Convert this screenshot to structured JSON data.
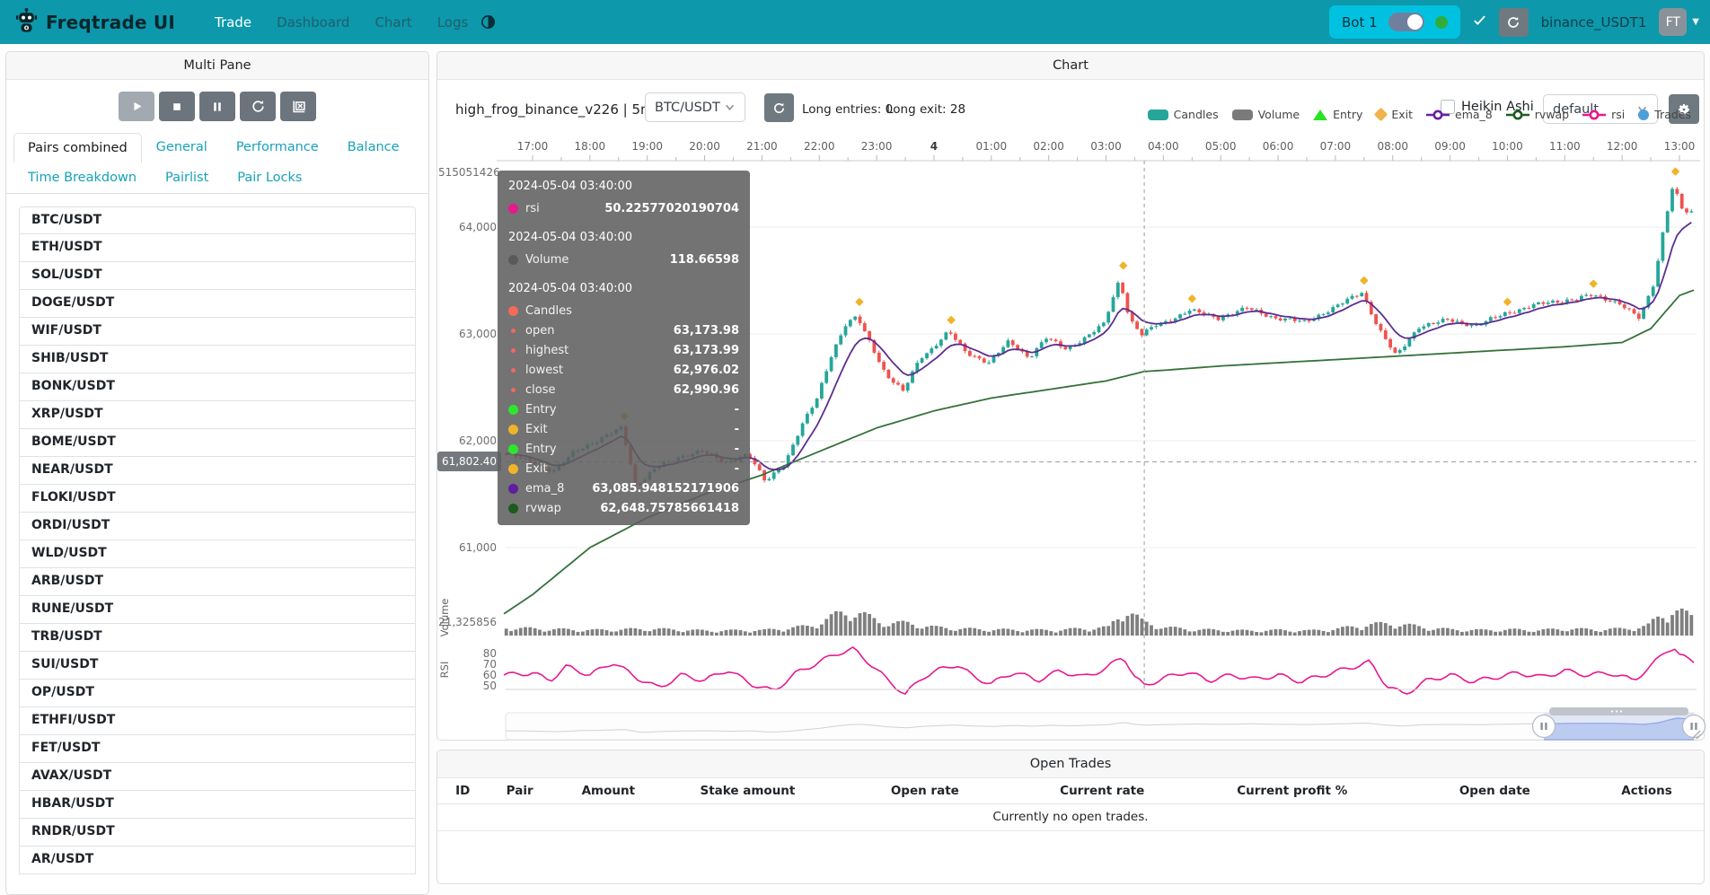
{
  "navbar": {
    "brand": "Freqtrade UI",
    "links": [
      {
        "label": "Trade",
        "active": true
      },
      {
        "label": "Dashboard",
        "active": false
      },
      {
        "label": "Chart",
        "active": false
      },
      {
        "label": "Logs",
        "active": false
      }
    ],
    "bot_name": "Bot 1",
    "exchange_label": "binance_USDT1",
    "avatar_initials": "FT"
  },
  "sidebar": {
    "title": "Multi Pane",
    "controls": [
      "play",
      "stop",
      "pause",
      "refresh",
      "close-chart"
    ],
    "tabs": [
      {
        "label": "Pairs combined",
        "active": true
      },
      {
        "label": "General",
        "active": false
      },
      {
        "label": "Performance",
        "active": false
      },
      {
        "label": "Balance",
        "active": false
      },
      {
        "label": "Time Breakdown",
        "active": false
      },
      {
        "label": "Pairlist",
        "active": false
      },
      {
        "label": "Pair Locks",
        "active": false
      }
    ],
    "pairs": [
      "BTC/USDT",
      "ETH/USDT",
      "SOL/USDT",
      "DOGE/USDT",
      "WIF/USDT",
      "SHIB/USDT",
      "BONK/USDT",
      "XRP/USDT",
      "BOME/USDT",
      "NEAR/USDT",
      "FLOKI/USDT",
      "ORDI/USDT",
      "WLD/USDT",
      "ARB/USDT",
      "RUNE/USDT",
      "TRB/USDT",
      "SUI/USDT",
      "OP/USDT",
      "ETHFI/USDT",
      "FET/USDT",
      "AVAX/USDT",
      "HBAR/USDT",
      "RNDR/USDT",
      "AR/USDT"
    ]
  },
  "chart_panel": {
    "title": "Chart",
    "strategy_label": "high_frog_binance_v226 | 5m",
    "pair_select_value": "BTC/USDT",
    "entries_label": "Long entries: 0",
    "exits_label": "Long exit: 28",
    "heikin_ashi_label": "Heikin Ashi",
    "plot_config_value": "default",
    "legend": [
      {
        "label": "Candles",
        "shape": "rect",
        "color": "#26a69a"
      },
      {
        "label": "Volume",
        "shape": "rect",
        "color": "#7a7a7a"
      },
      {
        "label": "Entry",
        "shape": "triangle",
        "color": "#27e427"
      },
      {
        "label": "Exit",
        "shape": "diamond",
        "color": "#f0b24b"
      },
      {
        "label": "ema_8",
        "shape": "line-circle",
        "color": "#6a1fa2"
      },
      {
        "label": "rvwap",
        "shape": "line-circle",
        "color": "#1b5e20"
      },
      {
        "label": "rsi",
        "shape": "line-circle",
        "color": "#e6198e"
      },
      {
        "label": "Trades",
        "shape": "circle",
        "color": "#4d9fdb"
      }
    ]
  },
  "tooltip": {
    "sections": [
      {
        "title": "2024-05-04 03:40:00",
        "rows": [
          {
            "dot": "#e6198e",
            "small": false,
            "label": "rsi",
            "value": "50.22577020190704"
          }
        ]
      },
      {
        "title": "2024-05-04 03:40:00",
        "rows": [
          {
            "dot": "#5a5a5a",
            "small": false,
            "label": "Volume",
            "value": "118.66598"
          }
        ]
      },
      {
        "title": "2024-05-04 03:40:00",
        "rows": [
          {
            "dot": "#f4695c",
            "small": false,
            "label": "Candles",
            "value": ""
          },
          {
            "dot": "#f4695c",
            "small": true,
            "label": "open",
            "value": "63,173.98"
          },
          {
            "dot": "#f4695c",
            "small": true,
            "label": "highest",
            "value": "63,173.99"
          },
          {
            "dot": "#f4695c",
            "small": true,
            "label": "lowest",
            "value": "62,976.02"
          },
          {
            "dot": "#f4695c",
            "small": true,
            "label": "close",
            "value": "62,990.96"
          },
          {
            "dot": "#2ee62e",
            "small": false,
            "label": "Entry",
            "value": "-"
          },
          {
            "dot": "#f0b429",
            "small": false,
            "label": "Exit",
            "value": "-"
          },
          {
            "dot": "#2ee62e",
            "small": false,
            "label": "Entry",
            "value": "-"
          },
          {
            "dot": "#f0b429",
            "small": false,
            "label": "Exit",
            "value": "-"
          },
          {
            "dot": "#5e1f9e",
            "small": false,
            "label": "ema_8",
            "value": "63,085.948152171906"
          },
          {
            "dot": "#1e5a1e",
            "small": false,
            "label": "rvwap",
            "value": "62,648.75785661418"
          }
        ]
      }
    ]
  },
  "chart_data": {
    "type": "candlestick+volume+rsi",
    "pair": "BTC/USDT",
    "timeframe": "5m",
    "hours_span": 20,
    "x_axis_labels": [
      "17:00",
      "18:00",
      "19:00",
      "20:00",
      "21:00",
      "22:00",
      "23:00",
      "4",
      "01:00",
      "02:00",
      "03:00",
      "04:00",
      "05:00",
      "06:00",
      "07:00",
      "08:00",
      "09:00",
      "10:00",
      "11:00",
      "12:00",
      "13:00"
    ],
    "price_axis_labels": [
      {
        "value": 64000,
        "text": "64,000"
      },
      {
        "value": 63000,
        "text": "63,000"
      },
      {
        "value": 62000,
        "text": "62,000"
      },
      {
        "value": 61000,
        "text": "61,000"
      }
    ],
    "top_left_axis_label": "515051426",
    "volume_axis_label": "21,325856",
    "rsi_axis_labels": [
      80,
      70,
      60,
      50
    ],
    "pane_labels": {
      "volume": "Volume",
      "rsi": "RSI"
    },
    "current_price": 61802.4,
    "current_price_label": "61,802.40",
    "crosshair_time_hours": 10.667,
    "colors": {
      "up": "#26a69a",
      "down": "#ef5350",
      "ema_8": "#5c2d91",
      "rvwap": "#35713a",
      "rsi": "#e6198e",
      "volume": "#7f7f7f",
      "exit_marker": "#f0b429"
    },
    "close_anchors": [
      [
        -0.5,
        61880
      ],
      [
        0,
        61820
      ],
      [
        0.4,
        61700
      ],
      [
        0.8,
        61920
      ],
      [
        1.2,
        62000
      ],
      [
        1.6,
        62130
      ],
      [
        1.85,
        61560
      ],
      [
        2.2,
        61750
      ],
      [
        2.6,
        61850
      ],
      [
        3.0,
        61900
      ],
      [
        3.4,
        61800
      ],
      [
        3.8,
        61870
      ],
      [
        4.1,
        61620
      ],
      [
        4.45,
        61800
      ],
      [
        4.75,
        62150
      ],
      [
        5.0,
        62400
      ],
      [
        5.25,
        62800
      ],
      [
        5.5,
        63080
      ],
      [
        5.7,
        63160
      ],
      [
        5.95,
        62900
      ],
      [
        6.2,
        62620
      ],
      [
        6.5,
        62460
      ],
      [
        6.8,
        62780
      ],
      [
        7.0,
        62860
      ],
      [
        7.3,
        63020
      ],
      [
        7.6,
        62830
      ],
      [
        8.0,
        62730
      ],
      [
        8.35,
        62930
      ],
      [
        8.7,
        62780
      ],
      [
        9.0,
        62960
      ],
      [
        9.35,
        62860
      ],
      [
        9.7,
        62970
      ],
      [
        10.0,
        63090
      ],
      [
        10.28,
        63520
      ],
      [
        10.45,
        63140
      ],
      [
        10.67,
        62990
      ],
      [
        10.9,
        63080
      ],
      [
        11.2,
        63140
      ],
      [
        11.5,
        63220
      ],
      [
        12.0,
        63150
      ],
      [
        12.5,
        63240
      ],
      [
        13.0,
        63150
      ],
      [
        13.5,
        63110
      ],
      [
        14.0,
        63240
      ],
      [
        14.5,
        63390
      ],
      [
        14.8,
        63050
      ],
      [
        15.1,
        62790
      ],
      [
        15.5,
        63070
      ],
      [
        16.0,
        63130
      ],
      [
        16.5,
        63080
      ],
      [
        17.0,
        63190
      ],
      [
        17.5,
        63270
      ],
      [
        18.0,
        63310
      ],
      [
        18.5,
        63360
      ],
      [
        19.0,
        63290
      ],
      [
        19.35,
        63140
      ],
      [
        19.6,
        63480
      ],
      [
        19.78,
        64040
      ],
      [
        19.93,
        64400
      ],
      [
        20.1,
        64150
      ],
      [
        20.3,
        64120
      ]
    ],
    "rvwap_anchors": [
      [
        -0.5,
        60380
      ],
      [
        0,
        60560
      ],
      [
        1,
        61000
      ],
      [
        2,
        61280
      ],
      [
        3,
        61500
      ],
      [
        4,
        61680
      ],
      [
        5,
        61900
      ],
      [
        6,
        62120
      ],
      [
        7,
        62280
      ],
      [
        8,
        62400
      ],
      [
        9,
        62480
      ],
      [
        10,
        62560
      ],
      [
        10.67,
        62649
      ],
      [
        11,
        62660
      ],
      [
        12,
        62700
      ],
      [
        13,
        62730
      ],
      [
        14,
        62760
      ],
      [
        15,
        62790
      ],
      [
        16,
        62820
      ],
      [
        17,
        62850
      ],
      [
        18,
        62880
      ],
      [
        19,
        62920
      ],
      [
        19.5,
        63050
      ],
      [
        20,
        63360
      ],
      [
        20.3,
        63420
      ]
    ],
    "rsi_anchors": [
      [
        -0.5,
        60
      ],
      [
        0,
        62
      ],
      [
        0.3,
        55
      ],
      [
        0.6,
        68
      ],
      [
        1,
        60
      ],
      [
        1.4,
        72
      ],
      [
        1.8,
        58
      ],
      [
        2.2,
        48
      ],
      [
        2.6,
        60
      ],
      [
        3,
        55
      ],
      [
        3.4,
        65
      ],
      [
        3.8,
        52
      ],
      [
        4.2,
        45
      ],
      [
        4.6,
        62
      ],
      [
        5,
        72
      ],
      [
        5.3,
        80
      ],
      [
        5.6,
        84
      ],
      [
        5.9,
        70
      ],
      [
        6.2,
        55
      ],
      [
        6.5,
        42
      ],
      [
        6.8,
        58
      ],
      [
        7.1,
        65
      ],
      [
        7.4,
        70
      ],
      [
        7.7,
        58
      ],
      [
        8,
        52
      ],
      [
        8.4,
        63
      ],
      [
        8.8,
        55
      ],
      [
        9.2,
        64
      ],
      [
        9.6,
        58
      ],
      [
        10,
        66
      ],
      [
        10.3,
        78
      ],
      [
        10.5,
        58
      ],
      [
        10.67,
        50.2
      ],
      [
        11,
        57
      ],
      [
        11.4,
        63
      ],
      [
        11.8,
        55
      ],
      [
        12.2,
        60
      ],
      [
        12.6,
        56
      ],
      [
        13,
        60
      ],
      [
        13.4,
        54
      ],
      [
        13.8,
        60
      ],
      [
        14.2,
        66
      ],
      [
        14.6,
        72
      ],
      [
        14.9,
        50
      ],
      [
        15.2,
        42
      ],
      [
        15.6,
        55
      ],
      [
        16,
        60
      ],
      [
        16.4,
        54
      ],
      [
        16.8,
        58
      ],
      [
        17.2,
        62
      ],
      [
        17.6,
        58
      ],
      [
        18,
        64
      ],
      [
        18.4,
        60
      ],
      [
        18.8,
        62
      ],
      [
        19.2,
        55
      ],
      [
        19.5,
        68
      ],
      [
        19.75,
        82
      ],
      [
        19.9,
        86
      ],
      [
        20,
        78
      ],
      [
        20.3,
        72
      ]
    ],
    "volume_envelope": [
      [
        -0.5,
        0.3
      ],
      [
        0,
        0.25
      ],
      [
        1,
        0.2
      ],
      [
        2,
        0.25
      ],
      [
        3,
        0.18
      ],
      [
        4,
        0.2
      ],
      [
        4.8,
        0.35
      ],
      [
        5.3,
        0.8
      ],
      [
        5.6,
        0.9
      ],
      [
        6,
        0.5
      ],
      [
        6.5,
        0.45
      ],
      [
        7,
        0.3
      ],
      [
        7.5,
        0.25
      ],
      [
        8,
        0.22
      ],
      [
        9,
        0.2
      ],
      [
        9.5,
        0.25
      ],
      [
        10,
        0.3
      ],
      [
        10.3,
        1.0
      ],
      [
        10.6,
        0.5
      ],
      [
        11,
        0.3
      ],
      [
        11.5,
        0.22
      ],
      [
        12,
        0.2
      ],
      [
        12.5,
        0.18
      ],
      [
        13,
        0.2
      ],
      [
        13.5,
        0.18
      ],
      [
        14,
        0.25
      ],
      [
        14.5,
        0.4
      ],
      [
        15,
        0.45
      ],
      [
        15.5,
        0.3
      ],
      [
        16,
        0.22
      ],
      [
        16.5,
        0.2
      ],
      [
        17,
        0.22
      ],
      [
        17.5,
        0.2
      ],
      [
        18,
        0.25
      ],
      [
        18.5,
        0.22
      ],
      [
        19,
        0.25
      ],
      [
        19.4,
        0.35
      ],
      [
        19.6,
        0.7
      ],
      [
        19.8,
        0.95
      ],
      [
        20,
        0.85
      ],
      [
        20.3,
        0.6
      ]
    ],
    "exit_markers": [
      [
        1.6,
        62230
      ],
      [
        5.7,
        63300
      ],
      [
        7.3,
        63130
      ],
      [
        10.3,
        63640
      ],
      [
        11.5,
        63330
      ],
      [
        14.5,
        63500
      ],
      [
        17.0,
        63300
      ],
      [
        18.5,
        63470
      ],
      [
        19.93,
        64520
      ]
    ]
  },
  "open_trades": {
    "title": "Open Trades",
    "columns": [
      "ID",
      "Pair",
      "Amount",
      "Stake amount",
      "Open rate",
      "Current rate",
      "Current profit %",
      "Open date",
      "Actions"
    ],
    "empty_text": "Currently no open trades."
  }
}
